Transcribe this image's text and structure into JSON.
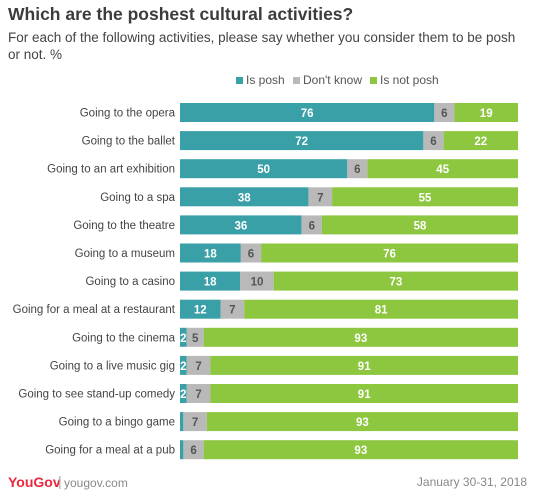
{
  "header": {
    "title": "Which are the poshest cultural activities?",
    "subtitle": "For each of the following activities, please say whether you consider them to be posh or not. %"
  },
  "footer": {
    "brand": "YouGov",
    "separator": "|",
    "url": "yougov.com",
    "date": "January 30-31, 2018"
  },
  "colors": {
    "is_posh": "#3aa0a8",
    "dont_know": "#b9b9b9",
    "not_posh": "#8dc63f"
  },
  "chart_data": {
    "type": "bar",
    "orientation": "horizontal",
    "stacked": true,
    "legend_position": "top",
    "categories": [
      "Going to the opera",
      "Going to the ballet",
      "Going to an art exhibition",
      "Going to a spa",
      "Going to the theatre",
      "Going to a museum",
      "Going to a casino",
      "Going for a meal at a restaurant",
      "Going to the cinema",
      "Going to a live music gig",
      "Going to see stand-up comedy",
      "Going to a bingo game",
      "Going for a meal at a pub"
    ],
    "series": [
      {
        "name": "Is posh",
        "values": [
          76,
          72,
          50,
          38,
          36,
          18,
          18,
          12,
          2,
          2,
          2,
          1,
          1
        ],
        "labels": [
          "76",
          "72",
          "50",
          "38",
          "36",
          "18",
          "18",
          "12",
          "2",
          "2",
          "2",
          "",
          ""
        ]
      },
      {
        "name": "Don't know",
        "values": [
          6,
          6,
          6,
          7,
          6,
          6,
          10,
          7,
          5,
          7,
          7,
          7,
          6
        ],
        "labels": [
          "6",
          "6",
          "6",
          "7",
          "6",
          "6",
          "10",
          "7",
          "5",
          "7",
          "7",
          "7",
          "6"
        ]
      },
      {
        "name": "Is not posh",
        "values": [
          19,
          22,
          45,
          55,
          58,
          76,
          73,
          81,
          93,
          91,
          91,
          93,
          93
        ],
        "labels": [
          "19",
          "22",
          "45",
          "55",
          "58",
          "76",
          "73",
          "81",
          "93",
          "91",
          "91",
          "93",
          "93"
        ]
      }
    ]
  }
}
